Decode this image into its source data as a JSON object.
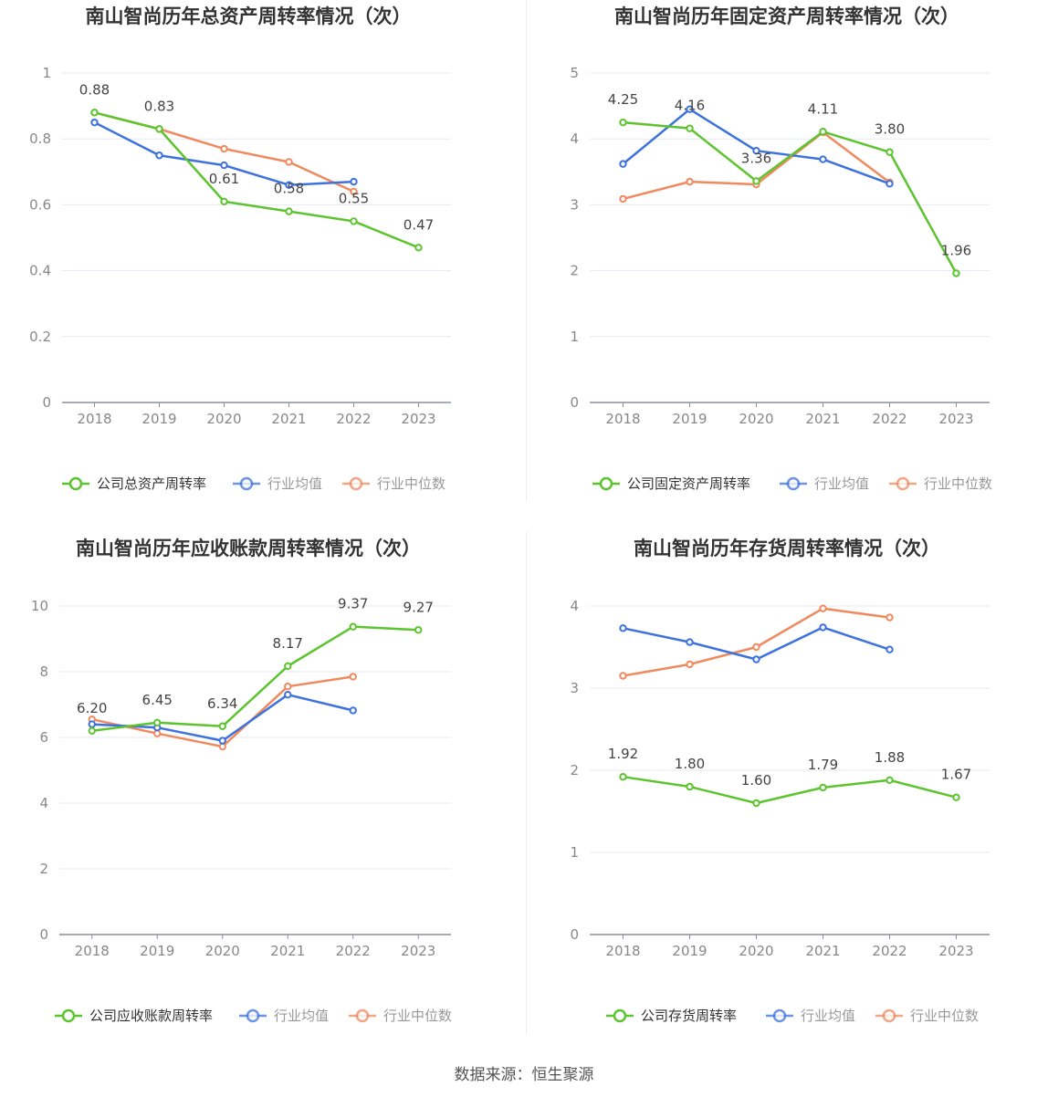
{
  "source_label": "数据来源：恒生聚源",
  "colors": {
    "company": "#5cc42e",
    "average": "#3d72de",
    "median": "#f0895e"
  },
  "chart_data": [
    {
      "type": "line",
      "title": "南山智尚历年总资产周转率情况（次）",
      "x": [
        "2018",
        "2019",
        "2020",
        "2021",
        "2022",
        "2023"
      ],
      "ylim": [
        0,
        1
      ],
      "yticks": [
        "0",
        "0.2",
        "0.4",
        "0.6",
        "0.8",
        "1"
      ],
      "grid": true,
      "legend": "bottom",
      "series": [
        {
          "name": "公司总资产周转率",
          "role": "company",
          "values": [
            0.88,
            0.83,
            0.61,
            0.58,
            0.55,
            0.47
          ],
          "labels": [
            "0.88",
            "0.83",
            "0.61",
            "0.58",
            "0.55",
            "0.47"
          ]
        },
        {
          "name": "行业均值",
          "role": "average",
          "values": [
            0.85,
            0.75,
            0.72,
            0.66,
            0.67,
            null
          ]
        },
        {
          "name": "行业中位数",
          "role": "median",
          "values": [
            0.88,
            0.83,
            0.77,
            0.73,
            0.64,
            null
          ]
        }
      ]
    },
    {
      "type": "line",
      "title": "南山智尚历年固定资产周转率情况（次）",
      "x": [
        "2018",
        "2019",
        "2020",
        "2021",
        "2022",
        "2023"
      ],
      "ylim": [
        0,
        5
      ],
      "yticks": [
        "0",
        "1",
        "2",
        "3",
        "4",
        "5"
      ],
      "grid": true,
      "legend": "bottom",
      "series": [
        {
          "name": "公司固定资产周转率",
          "role": "company",
          "values": [
            4.25,
            4.16,
            3.36,
            4.11,
            3.8,
            1.96
          ],
          "labels": [
            "4.25",
            "4.16",
            "3.36",
            "4.11",
            "3.80",
            "1.96"
          ]
        },
        {
          "name": "行业均值",
          "role": "average",
          "values": [
            3.62,
            4.45,
            3.82,
            3.69,
            3.32,
            null
          ]
        },
        {
          "name": "行业中位数",
          "role": "median",
          "values": [
            3.09,
            3.35,
            3.31,
            4.1,
            3.34,
            null
          ]
        }
      ]
    },
    {
      "type": "line",
      "title": "南山智尚历年应收账款周转率情况（次）",
      "x": [
        "2018",
        "2019",
        "2020",
        "2021",
        "2022",
        "2023"
      ],
      "ylim": [
        0,
        10
      ],
      "yticks": [
        "0",
        "2",
        "4",
        "6",
        "8",
        "10"
      ],
      "grid": true,
      "legend": "bottom",
      "series": [
        {
          "name": "公司应收账款周转率",
          "role": "company",
          "values": [
            6.2,
            6.45,
            6.34,
            8.17,
            9.37,
            9.27
          ],
          "labels": [
            "6.20",
            "6.45",
            "6.34",
            "8.17",
            "9.37",
            "9.27"
          ]
        },
        {
          "name": "行业均值",
          "role": "average",
          "values": [
            6.4,
            6.3,
            5.9,
            7.3,
            6.82,
            null
          ]
        },
        {
          "name": "行业中位数",
          "role": "median",
          "values": [
            6.55,
            6.12,
            5.72,
            7.55,
            7.85,
            null
          ]
        }
      ]
    },
    {
      "type": "line",
      "title": "南山智尚历年存货周转率情况（次）",
      "x": [
        "2018",
        "2019",
        "2020",
        "2021",
        "2022",
        "2023"
      ],
      "ylim": [
        0,
        4
      ],
      "yticks": [
        "0",
        "1",
        "2",
        "3",
        "4"
      ],
      "grid": true,
      "legend": "bottom",
      "series": [
        {
          "name": "公司存货周转率",
          "role": "company",
          "values": [
            1.92,
            1.8,
            1.6,
            1.79,
            1.88,
            1.67
          ],
          "labels": [
            "1.92",
            "1.80",
            "1.60",
            "1.79",
            "1.88",
            "1.67"
          ]
        },
        {
          "name": "行业均值",
          "role": "average",
          "values": [
            3.73,
            3.56,
            3.35,
            3.74,
            3.47,
            null
          ]
        },
        {
          "name": "行业中位数",
          "role": "median",
          "values": [
            3.15,
            3.29,
            3.5,
            3.97,
            3.86,
            null
          ]
        }
      ]
    }
  ]
}
